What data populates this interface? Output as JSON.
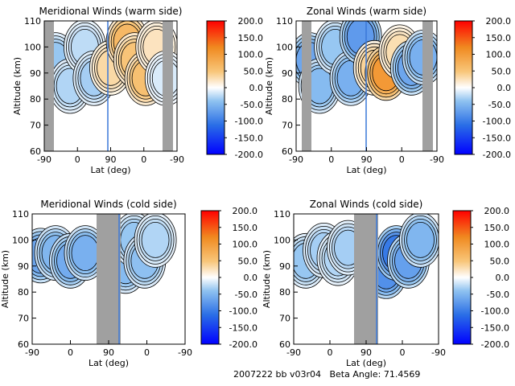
{
  "colors": {
    "frame": "#000000",
    "night_band": "#a0a0a0",
    "contour_line": "#000000",
    "terminator_line": "#3a78d8",
    "colorbar_stops": [
      "#0000ff",
      "#2a6ee6",
      "#8fc2f0",
      "#ffffff",
      "#f8c67a",
      "#f08a20",
      "#ff0000"
    ]
  },
  "footer": {
    "text": "2007222 bb v03r04   Beta Angle: 71.4569"
  },
  "chart_data": [
    {
      "type": "heatmap",
      "title": "Meridional Winds (warm side)",
      "xlabel": "Lat (deg)",
      "ylabel": "Altitude (km)",
      "x_ticks": [
        "-90",
        "0",
        "90",
        "0",
        "-90"
      ],
      "y_ticks": [
        "60",
        "70",
        "80",
        "90",
        "100",
        "110"
      ],
      "ylim": [
        60,
        110
      ],
      "colorbar": {
        "ticks": [
          "200.0",
          "150.0",
          "100.0",
          "50.0",
          "0.0",
          "-50.0",
          "-100.0",
          "-150.0",
          "-200.0"
        ],
        "range": [
          -200,
          200
        ]
      },
      "wind_cells": [
        {
          "lat": -60,
          "alt": 95,
          "value": -40
        },
        {
          "lat": -20,
          "alt": 85,
          "value": -30
        },
        {
          "lat": 20,
          "alt": 100,
          "value": -25
        },
        {
          "lat": 45,
          "alt": 88,
          "value": -35
        },
        {
          "lat": 90,
          "alt": 92,
          "value": 35
        },
        {
          "lat": 135,
          "alt": 102,
          "value": 70
        },
        {
          "lat": 155,
          "alt": 95,
          "value": 55
        },
        {
          "lat": 185,
          "alt": 88,
          "value": 60
        },
        {
          "lat": 215,
          "alt": 100,
          "value": 25
        },
        {
          "lat": 240,
          "alt": 88,
          "value": -15
        }
      ]
    },
    {
      "type": "heatmap",
      "title": "Zonal Winds (warm side)",
      "xlabel": "Lat (deg)",
      "ylabel": "Altitude (km)",
      "x_ticks": [
        "-90",
        "0",
        "90",
        "0",
        "-90"
      ],
      "y_ticks": [
        "60",
        "70",
        "80",
        "90",
        "100",
        "110"
      ],
      "ylim": [
        60,
        110
      ],
      "colorbar": {
        "ticks": [
          "200.0",
          "150.0",
          "100.0",
          "50.0",
          "0.0",
          "-50.0",
          "-100.0",
          "-150.0",
          "-200.0"
        ],
        "range": [
          -200,
          200
        ]
      },
      "wind_cells": [
        {
          "lat": -55,
          "alt": 95,
          "value": -70
        },
        {
          "lat": -30,
          "alt": 85,
          "value": -50
        },
        {
          "lat": 10,
          "alt": 100,
          "value": -40
        },
        {
          "lat": 50,
          "alt": 88,
          "value": -60
        },
        {
          "lat": 75,
          "alt": 104,
          "value": -80
        },
        {
          "lat": 110,
          "alt": 92,
          "value": 40
        },
        {
          "lat": 140,
          "alt": 90,
          "value": 110
        },
        {
          "lat": 175,
          "alt": 98,
          "value": 30
        },
        {
          "lat": 205,
          "alt": 92,
          "value": -70
        },
        {
          "lat": 235,
          "alt": 96,
          "value": -60
        }
      ]
    },
    {
      "type": "heatmap",
      "title": "Meridional Winds (cold side)",
      "xlabel": "Lat (deg)",
      "ylabel": "Altitude (km)",
      "x_ticks": [
        "-90",
        "0",
        "90",
        "0",
        "-90"
      ],
      "y_ticks": [
        "60",
        "70",
        "80",
        "90",
        "100",
        "110"
      ],
      "ylim": [
        60,
        110
      ],
      "colorbar": {
        "ticks": [
          "200.0",
          "150.0",
          "100.0",
          "50.0",
          "0.0",
          "-50.0",
          "-100.0",
          "-150.0",
          "-200.0"
        ],
        "range": [
          -200,
          200
        ]
      },
      "wind_cells": [
        {
          "lat": -70,
          "alt": 94,
          "value": -70
        },
        {
          "lat": -35,
          "alt": 95,
          "value": -55
        },
        {
          "lat": 0,
          "alt": 92,
          "value": -65
        },
        {
          "lat": 35,
          "alt": 95,
          "value": -60
        },
        {
          "lat": 130,
          "alt": 90,
          "value": -50
        },
        {
          "lat": 150,
          "alt": 100,
          "value": -40
        },
        {
          "lat": 175,
          "alt": 92,
          "value": -45
        },
        {
          "lat": 200,
          "alt": 100,
          "value": -30
        }
      ]
    },
    {
      "type": "heatmap",
      "title": "Zonal Winds (cold side)",
      "xlabel": "Lat (deg)",
      "ylabel": "Altitude (km)",
      "x_ticks": [
        "-90",
        "0",
        "90",
        "0",
        "-90"
      ],
      "y_ticks": [
        "60",
        "70",
        "80",
        "90",
        "100",
        "110"
      ],
      "ylim": [
        60,
        110
      ],
      "colorbar": {
        "ticks": [
          "200.0",
          "150.0",
          "100.0",
          "50.0",
          "0.0",
          "-50.0",
          "-100.0",
          "-150.0",
          "-200.0"
        ],
        "range": [
          -200,
          200
        ]
      },
      "wind_cells": [
        {
          "lat": -60,
          "alt": 92,
          "value": -40
        },
        {
          "lat": -15,
          "alt": 96,
          "value": -35
        },
        {
          "lat": 20,
          "alt": 93,
          "value": -30
        },
        {
          "lat": 45,
          "alt": 97,
          "value": -35
        },
        {
          "lat": 140,
          "alt": 88,
          "value": -90
        },
        {
          "lat": 165,
          "alt": 95,
          "value": -110
        },
        {
          "lat": 195,
          "alt": 92,
          "value": -75
        },
        {
          "lat": 225,
          "alt": 100,
          "value": -55
        }
      ]
    }
  ]
}
